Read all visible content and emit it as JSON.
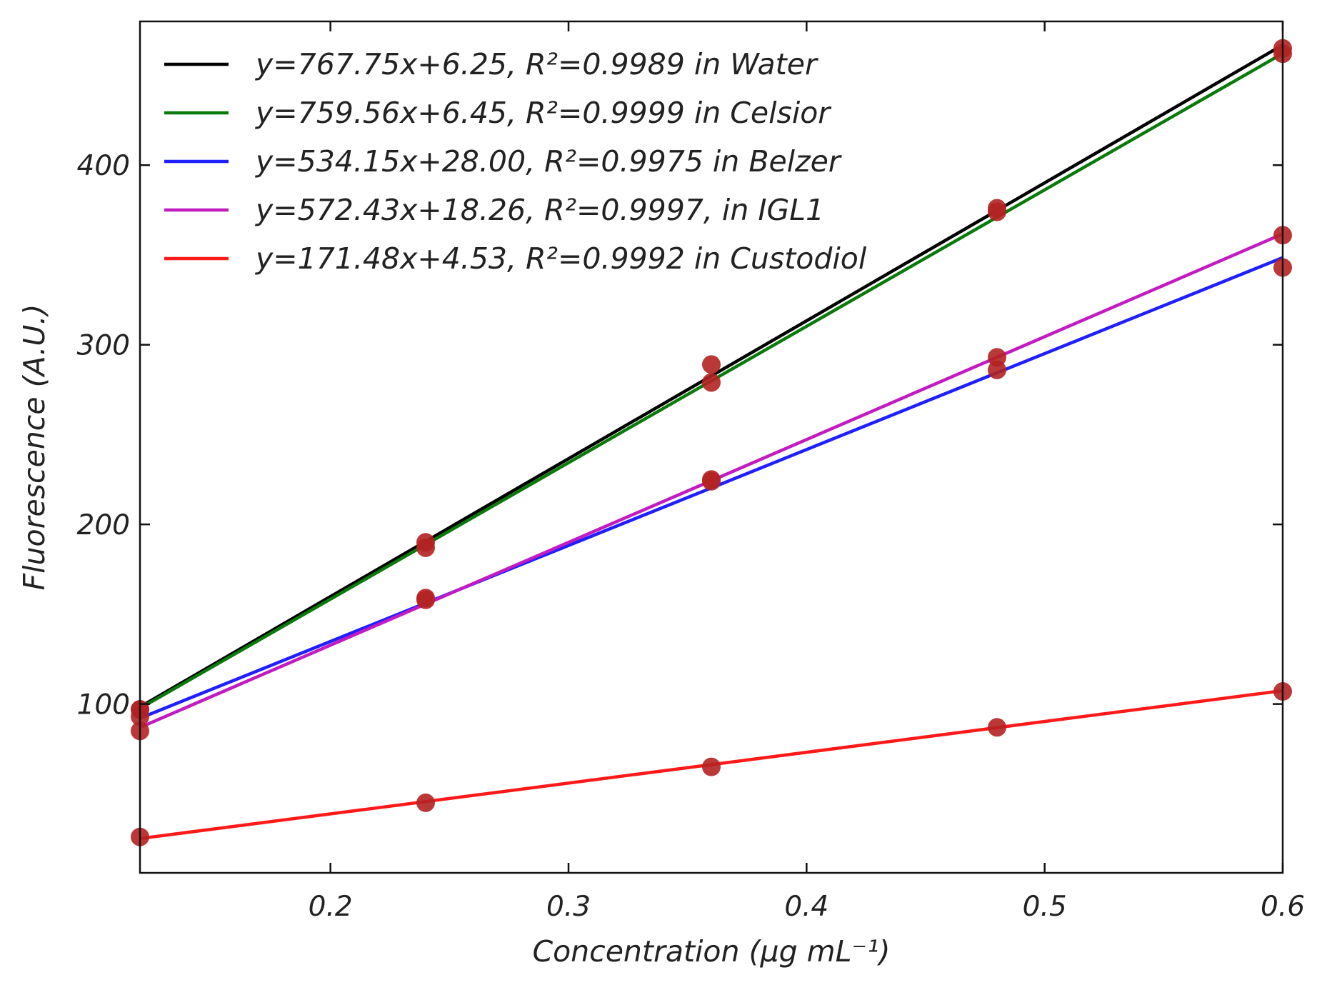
{
  "chart_data": {
    "type": "scatter",
    "title": "",
    "xlabel": "Concentration (μg mL⁻¹)",
    "ylabel": "Fluorescence (A.U.)",
    "xlim": [
      0.12,
      0.6
    ],
    "ylim": [
      6,
      480
    ],
    "xticks": [
      0.2,
      0.3,
      0.4,
      0.5,
      0.6
    ],
    "xtick_labels": [
      "0.2",
      "0.3",
      "0.4",
      "0.5",
      "0.6"
    ],
    "yticks": [
      100,
      200,
      300,
      400
    ],
    "ytick_labels": [
      "100",
      "200",
      "300",
      "400"
    ],
    "grid": false,
    "legend_position": "top-left",
    "x": [
      0.12,
      0.24,
      0.36,
      0.48,
      0.6
    ],
    "series": [
      {
        "name": "y=767.75x+6.25, R²=0.9989 in Water",
        "color": "#000000",
        "slope": 767.75,
        "intercept": 6.25,
        "values": [
          97,
          190,
          289,
          376,
          465
        ]
      },
      {
        "name": "y=759.56x+6.45, R²=0.9999 in Celsior",
        "color": "#0a7a0a",
        "slope": 759.56,
        "intercept": 6.45,
        "values": [
          97,
          187,
          279,
          374,
          462
        ]
      },
      {
        "name": "y=534.15x+28.00, R²=0.9975 in Belzer",
        "color": "#1f1fff",
        "slope": 534.15,
        "intercept": 28.0,
        "values": [
          93,
          158,
          224,
          286,
          343
        ]
      },
      {
        "name": "y=572.43x+18.26, R²=0.9997, in IGL1",
        "color": "#c21bc2",
        "slope": 572.43,
        "intercept": 18.26,
        "values": [
          85,
          159,
          225,
          293,
          361
        ]
      },
      {
        "name": "y=171.48x+4.53, R²=0.9992 in Custodiol",
        "color": "#ff1a1a",
        "slope": 171.48,
        "intercept": 4.53,
        "values": [
          26,
          45,
          65,
          87,
          107
        ]
      }
    ],
    "marker_color": "#b22222"
  }
}
